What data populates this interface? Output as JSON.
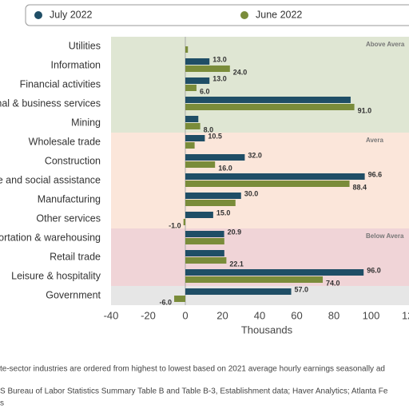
{
  "chart_data": {
    "type": "hbar",
    "categories": [
      "Utilities",
      "Information",
      "Financial activities",
      "nal & business services",
      "Mining",
      "Wholesale trade",
      "Construction",
      "e and social assistance",
      "Manufacturing",
      "Other services",
      "ortation & warehousing",
      "Retail trade",
      "Leisure & hospitality",
      "Government"
    ],
    "series": [
      {
        "name": "July 2022",
        "color": "#1f4e66",
        "values": [
          null,
          13.0,
          13.0,
          89,
          7,
          10.5,
          32.0,
          96.6,
          30.0,
          15.0,
          20.9,
          21,
          96.0,
          57.0
        ],
        "value_labels": [
          null,
          "13.0",
          "13.0",
          null,
          null,
          "10.5",
          "32.0",
          "96.6",
          "30.0",
          "15.0",
          "20.9",
          null,
          "96.0",
          "57.0"
        ]
      },
      {
        "name": "June 2022",
        "color": "#7a8c3a",
        "values": [
          1.4,
          24.0,
          6.0,
          91.0,
          8.0,
          5,
          16.0,
          88.4,
          27,
          -1.0,
          21,
          22.1,
          74.0,
          -6.0
        ],
        "value_labels": [
          null,
          "24.0",
          "6.0",
          "91.0",
          "8.0",
          null,
          "16.0",
          "88.4",
          null,
          "-1.0",
          null,
          "22.1",
          "74.0",
          "-6.0"
        ]
      }
    ],
    "xlim": [
      -40,
      120
    ],
    "xticks": [
      -40,
      -20,
      0,
      20,
      40,
      60,
      80,
      100,
      {
        "value": 120,
        "label": "12"
      }
    ],
    "xlabel": "Thousands",
    "bands": [
      {
        "label": "Above Avera",
        "color": "#dfe6d3"
      },
      {
        "label": "Avera",
        "color": "#fbe6da"
      },
      {
        "label": "Below Avera",
        "color": "#f0d4d7"
      },
      {
        "color": "#e6e6e6"
      }
    ],
    "notes": [
      "te-sector industries are ordered from highest to lowest based on 2021 average hourly earnings seasonally ad",
      "S Bureau of Labor Statistics Summary Table B and Table B-3, Establishment data; Haver Analytics; Atlanta Fe",
      "s"
    ]
  }
}
